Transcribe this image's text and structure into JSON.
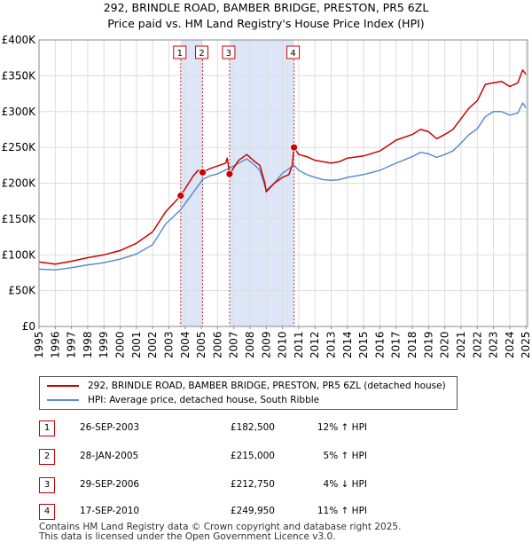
{
  "title_line1": "292, BRINDLE ROAD, BAMBER BRIDGE, PRESTON, PR5 6ZL",
  "title_line2": "Price paid vs. HM Land Registry's House Price Index (HPI)",
  "colors": {
    "property": "#cc0000",
    "hpi": "#5b8fd0",
    "shade": "#dde6f7",
    "grid": "#dddddd"
  },
  "chart_data": {
    "type": "line",
    "title": "292, BRINDLE ROAD, BAMBER BRIDGE, PRESTON, PR5 6ZL — Price paid vs. HM Land Registry's House Price Index (HPI)",
    "xlim": [
      1995,
      2025.1
    ],
    "ylim": [
      0,
      400000
    ],
    "y_ticks": [
      0,
      50000,
      100000,
      150000,
      200000,
      250000,
      300000,
      350000,
      400000
    ],
    "y_tick_labels": [
      "£0",
      "£50K",
      "£100K",
      "£150K",
      "£200K",
      "£250K",
      "£300K",
      "£350K",
      "£400K"
    ],
    "x_ticks": [
      1995,
      1996,
      1997,
      1998,
      1999,
      2000,
      2001,
      2002,
      2003,
      2004,
      2005,
      2006,
      2007,
      2008,
      2009,
      2010,
      2011,
      2012,
      2013,
      2014,
      2015,
      2016,
      2017,
      2018,
      2019,
      2020,
      2021,
      2022,
      2023,
      2024,
      2025
    ],
    "x_tick_labels": [
      "1995",
      "1996",
      "1997",
      "1998",
      "1999",
      "2000",
      "2001",
      "2002",
      "2003",
      "2004",
      "2005",
      "2006",
      "2007",
      "2008",
      "2009",
      "2010",
      "2011",
      "2012",
      "2013",
      "2014",
      "2015",
      "2016",
      "2017",
      "2018",
      "2019",
      "2020",
      "2021",
      "2022",
      "2023",
      "2024",
      "2025"
    ],
    "shaded_ranges": [
      [
        2003.73,
        2005.08
      ],
      [
        2006.74,
        2010.71
      ]
    ],
    "legend_position": "below",
    "series": [
      {
        "name": "292, BRINDLE ROAD, BAMBER BRIDGE, PRESTON, PR5 6ZL (detached house)",
        "color": "#cc0000",
        "points": [
          [
            1995.0,
            90000
          ],
          [
            1996.0,
            87000
          ],
          [
            1997.0,
            91000
          ],
          [
            1998.0,
            96000
          ],
          [
            1999.0,
            100000
          ],
          [
            2000.0,
            106000
          ],
          [
            2001.0,
            116000
          ],
          [
            2002.0,
            132000
          ],
          [
            2002.8,
            160000
          ],
          [
            2003.73,
            182500
          ],
          [
            2004.5,
            210000
          ],
          [
            2004.8,
            218000
          ],
          [
            2005.08,
            215000
          ],
          [
            2005.5,
            220000
          ],
          [
            2006.0,
            224000
          ],
          [
            2006.5,
            228000
          ],
          [
            2006.6,
            235000
          ],
          [
            2006.74,
            212750
          ],
          [
            2007.3,
            232000
          ],
          [
            2007.8,
            240000
          ],
          [
            2008.3,
            230000
          ],
          [
            2008.6,
            225000
          ],
          [
            2008.9,
            202000
          ],
          [
            2009.0,
            188000
          ],
          [
            2009.5,
            200000
          ],
          [
            2010.0,
            208000
          ],
          [
            2010.4,
            212000
          ],
          [
            2010.6,
            225000
          ],
          [
            2010.71,
            249950
          ],
          [
            2011.0,
            240000
          ],
          [
            2011.5,
            237000
          ],
          [
            2012.0,
            232000
          ],
          [
            2012.5,
            230000
          ],
          [
            2013.0,
            228000
          ],
          [
            2013.5,
            230000
          ],
          [
            2014.0,
            235000
          ],
          [
            2015.0,
            238000
          ],
          [
            2016.0,
            245000
          ],
          [
            2017.0,
            260000
          ],
          [
            2018.0,
            268000
          ],
          [
            2018.5,
            275000
          ],
          [
            2019.0,
            272000
          ],
          [
            2019.5,
            262000
          ],
          [
            2020.0,
            268000
          ],
          [
            2020.5,
            275000
          ],
          [
            2021.0,
            290000
          ],
          [
            2021.5,
            305000
          ],
          [
            2022.0,
            315000
          ],
          [
            2022.5,
            338000
          ],
          [
            2023.0,
            340000
          ],
          [
            2023.5,
            342000
          ],
          [
            2024.0,
            335000
          ],
          [
            2024.5,
            340000
          ],
          [
            2024.8,
            358000
          ],
          [
            2025.0,
            352000
          ]
        ]
      },
      {
        "name": "HPI: Average price, detached house, South Ribble",
        "color": "#5b8fd0",
        "points": [
          [
            1995.0,
            80000
          ],
          [
            1996.0,
            79000
          ],
          [
            1997.0,
            82000
          ],
          [
            1998.0,
            86000
          ],
          [
            1999.0,
            89000
          ],
          [
            2000.0,
            94000
          ],
          [
            2001.0,
            101000
          ],
          [
            2002.0,
            114000
          ],
          [
            2002.8,
            143000
          ],
          [
            2003.73,
            163000
          ],
          [
            2004.5,
            187000
          ],
          [
            2005.08,
            205000
          ],
          [
            2005.5,
            210000
          ],
          [
            2006.0,
            213000
          ],
          [
            2006.74,
            221000
          ],
          [
            2007.3,
            228000
          ],
          [
            2007.8,
            234000
          ],
          [
            2008.3,
            225000
          ],
          [
            2008.6,
            218000
          ],
          [
            2009.0,
            190000
          ],
          [
            2009.5,
            200000
          ],
          [
            2010.0,
            214000
          ],
          [
            2010.71,
            225000
          ],
          [
            2011.0,
            218000
          ],
          [
            2011.5,
            212000
          ],
          [
            2012.0,
            208000
          ],
          [
            2012.5,
            205000
          ],
          [
            2013.0,
            204000
          ],
          [
            2013.5,
            205000
          ],
          [
            2014.0,
            208000
          ],
          [
            2015.0,
            212000
          ],
          [
            2016.0,
            218000
          ],
          [
            2017.0,
            228000
          ],
          [
            2018.0,
            237000
          ],
          [
            2018.5,
            243000
          ],
          [
            2019.0,
            241000
          ],
          [
            2019.5,
            236000
          ],
          [
            2020.0,
            240000
          ],
          [
            2020.5,
            245000
          ],
          [
            2021.0,
            256000
          ],
          [
            2021.5,
            268000
          ],
          [
            2022.0,
            276000
          ],
          [
            2022.5,
            293000
          ],
          [
            2023.0,
            300000
          ],
          [
            2023.5,
            300000
          ],
          [
            2024.0,
            295000
          ],
          [
            2024.5,
            298000
          ],
          [
            2024.8,
            312000
          ],
          [
            2025.0,
            305000
          ]
        ]
      }
    ],
    "sales": [
      {
        "num": "1",
        "x": 2003.73,
        "price": 182500
      },
      {
        "num": "2",
        "x": 2005.08,
        "price": 215000
      },
      {
        "num": "3",
        "x": 2006.74,
        "price": 212750
      },
      {
        "num": "4",
        "x": 2010.71,
        "price": 249950
      }
    ]
  },
  "legend": {
    "property_label": "292, BRINDLE ROAD, BAMBER BRIDGE, PRESTON, PR5 6ZL (detached house)",
    "hpi_label": "HPI: Average price, detached house, South Ribble"
  },
  "sales_table": [
    {
      "num": "1",
      "date": "26-SEP-2003",
      "price": "£182,500",
      "hpi": "12% ↑ HPI"
    },
    {
      "num": "2",
      "date": "28-JAN-2005",
      "price": "£215,000",
      "hpi": "5% ↑ HPI"
    },
    {
      "num": "3",
      "date": "29-SEP-2006",
      "price": "£212,750",
      "hpi": "4% ↓ HPI"
    },
    {
      "num": "4",
      "date": "17-SEP-2010",
      "price": "£249,950",
      "hpi": "11% ↑ HPI"
    }
  ],
  "footer": {
    "line1": "Contains HM Land Registry data © Crown copyright and database right 2025.",
    "line2": "This data is licensed under the Open Government Licence v3.0."
  }
}
